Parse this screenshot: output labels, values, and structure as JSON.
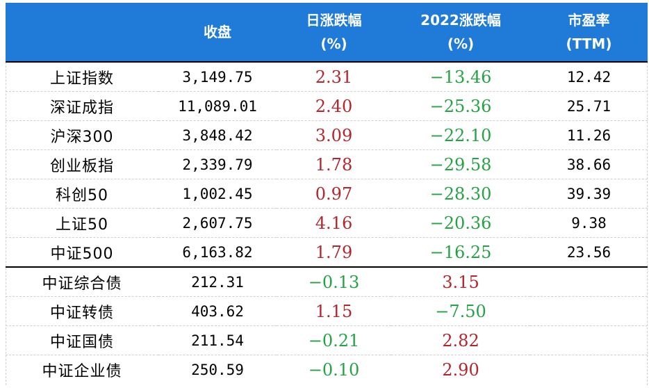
{
  "header": {
    "col_name": "",
    "col_close": "收盘",
    "col_daily_line1": "日涨跌幅",
    "col_daily_line2": "(%)",
    "col_ytd_line1": "2022涨跌幅",
    "col_ytd_line2": "(%)",
    "col_pe_line1": "市盈率",
    "col_pe_line2": "(TTM)"
  },
  "colors": {
    "header_bg": "#1f7ad8",
    "up": "#b3262d",
    "down": "#25a244"
  },
  "rows": [
    {
      "name": "上证指数",
      "close": "3,149.75",
      "daily": "2.31",
      "ytd": "−13.46",
      "pe": "12.42"
    },
    {
      "name": "深证成指",
      "close": "11,089.01",
      "daily": "2.40",
      "ytd": "−25.36",
      "pe": "25.71"
    },
    {
      "name": "沪深300",
      "close": "3,848.42",
      "daily": "3.09",
      "ytd": "−22.10",
      "pe": "11.26"
    },
    {
      "name": "创业板指",
      "close": "2,339.79",
      "daily": "1.78",
      "ytd": "−29.58",
      "pe": "38.66"
    },
    {
      "name": "科创50",
      "close": "1,002.45",
      "daily": "0.97",
      "ytd": "−28.30",
      "pe": "39.39"
    },
    {
      "name": "上证50",
      "close": "2,607.75",
      "daily": "4.16",
      "ytd": "−20.36",
      "pe": "9.38"
    },
    {
      "name": "中证500",
      "close": "6,163.82",
      "daily": "1.79",
      "ytd": "−16.25",
      "pe": "23.56"
    },
    {
      "name": "中证综合债",
      "close": "212.31",
      "daily": "−0.13",
      "ytd": "3.15",
      "pe": ""
    },
    {
      "name": "中证转债",
      "close": "403.62",
      "daily": "1.15",
      "ytd": "−7.50",
      "pe": ""
    },
    {
      "name": "中证国债",
      "close": "211.54",
      "daily": "−0.21",
      "ytd": "2.82",
      "pe": ""
    },
    {
      "name": "中证企业债",
      "close": "250.59",
      "daily": "−0.10",
      "ytd": "2.90",
      "pe": ""
    }
  ]
}
